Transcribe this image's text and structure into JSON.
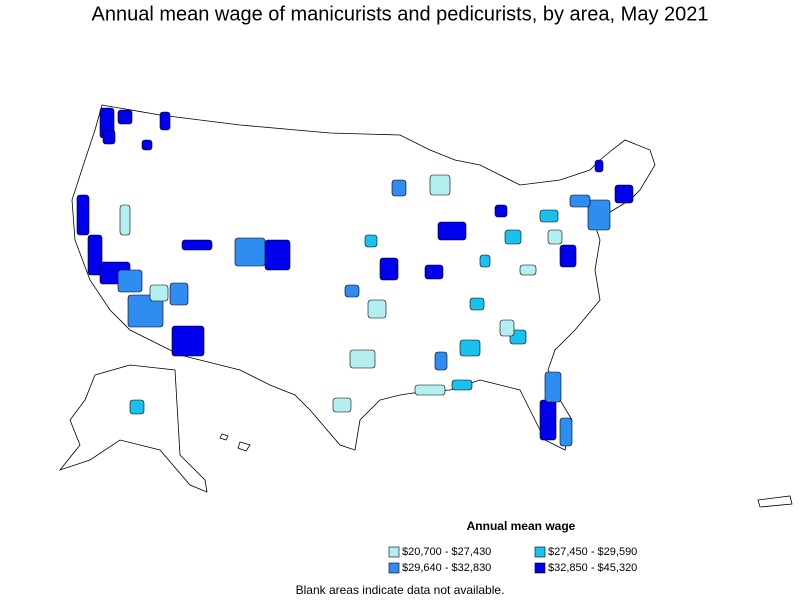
{
  "title": "Annual mean wage of manicurists and pedicurists, by area, May 2021",
  "legend": {
    "title": "Annual mean wage",
    "items": [
      {
        "label": "$20,700 - $27,430",
        "color": "#b3eef0"
      },
      {
        "label": "$27,450 - $29,590",
        "color": "#19c2ee"
      },
      {
        "label": "$29,640 - $32,830",
        "color": "#2f8cf0"
      },
      {
        "label": "$32,850 - $45,320",
        "color": "#0000ee"
      }
    ]
  },
  "footnote": "Blank areas indicate data not available."
}
